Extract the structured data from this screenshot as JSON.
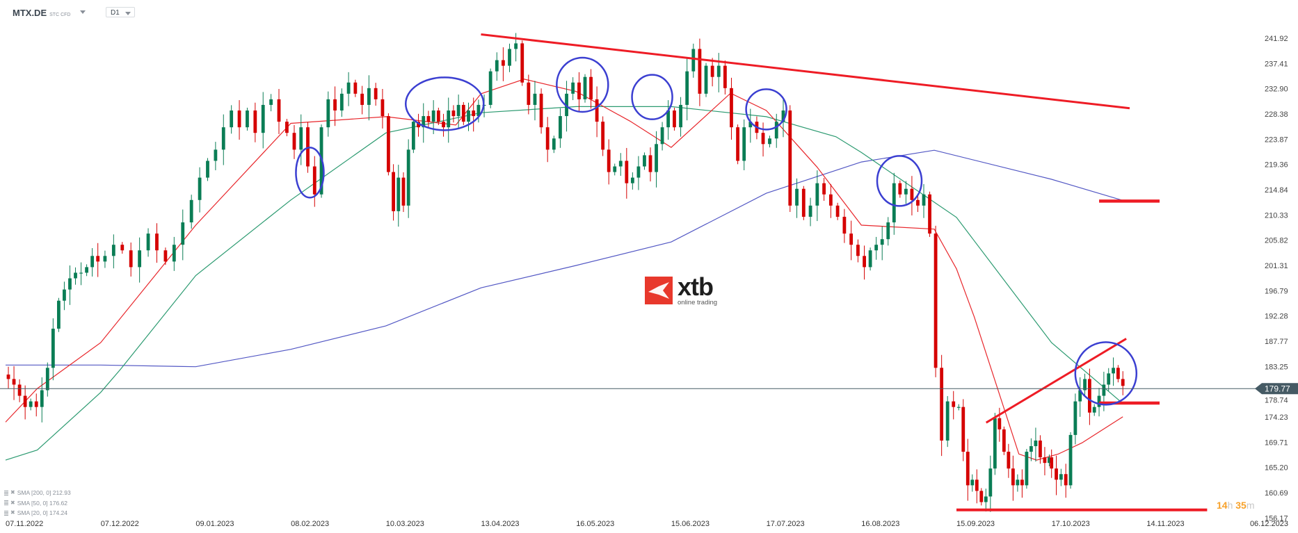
{
  "header": {
    "symbol": "MTX.DE",
    "instrument_class": "STC CFD",
    "timeframe": "D1"
  },
  "legend": [
    {
      "label": "SMA [200, 0] 212.93"
    },
    {
      "label": "SMA [50, 0] 176.62"
    },
    {
      "label": "SMA [20, 0] 174.24"
    }
  ],
  "logo": {
    "word": "xtb",
    "tagline": "online trading"
  },
  "countdown": {
    "hours": "14",
    "h": "h",
    "minutes": "35",
    "m": "m"
  },
  "colors": {
    "up": "#0a7d55",
    "down": "#d50000",
    "sma200": "#5257c4",
    "sma50": "#2b9a70",
    "sma20": "#e8262b",
    "annotation_line": "#ee1c25",
    "annotation_circle": "#3b3fd1",
    "price_tag": "#455a64"
  },
  "chart_data": {
    "type": "candlestick",
    "current_price": "179.77",
    "y_ticks": [
      "241.92",
      "237.41",
      "232.90",
      "228.38",
      "223.87",
      "219.36",
      "214.84",
      "210.33",
      "205.82",
      "201.31",
      "196.79",
      "192.28",
      "187.77",
      "183.25",
      "178.74",
      "174.23",
      "169.71",
      "165.20",
      "160.69",
      "156.17"
    ],
    "ylim": [
      156.17,
      241.92
    ],
    "x_ticks": [
      "07.11.2022",
      "07.12.2022",
      "09.01.2023",
      "08.02.2023",
      "10.03.2023",
      "13.04.2023",
      "16.05.2023",
      "15.06.2023",
      "17.07.2023",
      "16.08.2023",
      "15.09.2023",
      "17.10.2023",
      "14.11.2023",
      "06.12.2023"
    ],
    "close_segments": [
      {
        "from": "07.11.2022",
        "to": "07.12.2022",
        "closes": [
          181,
          180,
          178,
          176,
          177,
          176,
          179,
          183,
          190,
          195,
          197,
          199,
          200,
          200,
          201,
          203,
          202
        ]
      },
      {
        "from": "07.12.2022",
        "to": "09.01.2023",
        "closes": [
          203,
          205,
          204,
          201,
          204,
          207,
          204,
          202,
          205,
          209,
          213
        ]
      },
      {
        "from": "09.01.2023",
        "to": "08.02.2023",
        "closes": [
          217,
          220,
          222,
          226,
          229,
          226,
          229,
          225,
          230,
          231,
          227,
          225
        ]
      },
      {
        "from": "08.02.2023",
        "to": "10.03.2023",
        "closes": [
          222,
          226,
          219,
          214,
          226,
          231,
          229,
          232,
          234,
          232,
          230,
          233,
          231,
          228
        ]
      },
      {
        "from": "10.03.2023",
        "to": "13.04.2023",
        "closes": [
          218,
          211,
          217,
          212,
          222,
          227,
          226,
          228,
          227,
          229,
          227,
          226,
          229,
          228,
          230,
          227,
          229,
          228,
          230
        ]
      },
      {
        "from": "13.04.2023",
        "to": "16.05.2023",
        "closes": [
          230,
          236,
          238,
          237,
          240,
          241,
          234,
          230,
          232,
          226,
          222,
          224,
          228,
          232,
          234
        ]
      },
      {
        "from": "16.05.2023",
        "to": "15.06.2023",
        "closes": [
          231,
          235,
          231,
          227,
          222,
          218,
          219,
          220,
          216,
          217,
          219,
          221,
          218,
          223,
          226,
          229
        ]
      },
      {
        "from": "15.06.2023",
        "to": "17.07.2023",
        "closes": [
          226,
          230,
          236,
          240,
          232,
          237,
          235,
          237,
          233,
          226,
          220,
          226,
          227,
          225,
          223
        ]
      },
      {
        "from": "17.07.2023",
        "to": "16.08.2023",
        "closes": [
          224,
          227,
          229,
          212,
          215,
          210,
          212,
          216,
          214,
          212,
          210,
          207,
          205,
          203
        ]
      },
      {
        "from": "16.08.2023",
        "to": "15.09.2023",
        "closes": [
          201,
          204,
          205,
          206,
          209,
          216,
          214,
          215,
          213,
          212,
          214,
          207,
          183,
          170,
          177,
          176
        ]
      },
      {
        "from": "15.09.2023",
        "to": "17.10.2023",
        "closes": [
          176,
          168,
          162,
          163,
          161,
          159,
          160,
          165,
          174,
          172,
          168,
          165,
          162,
          163,
          162,
          168,
          169,
          170,
          167,
          166,
          167
        ]
      },
      {
        "from": "17.10.2023",
        "to": "07.11.2023",
        "closes": [
          165,
          163,
          164,
          162,
          171,
          177,
          179,
          181,
          175,
          176,
          178,
          180,
          182,
          183,
          181,
          179.77
        ]
      }
    ],
    "series": [
      {
        "name": "SMA [200, 0]",
        "points": [
          [
            "07.11.2022",
            183.5
          ],
          [
            "07.12.2022",
            183.5
          ],
          [
            "09.01.2023",
            183.2
          ],
          [
            "08.02.2023",
            186.3
          ],
          [
            "10.03.2023",
            190.5
          ],
          [
            "13.04.2023",
            197.3
          ],
          [
            "16.05.2023",
            201.3
          ],
          [
            "15.06.2023",
            205.5
          ],
          [
            "17.07.2023",
            214.2
          ],
          [
            "16.08.2023",
            219.8
          ],
          [
            "08.09.2023",
            221.9
          ],
          [
            "17.10.2023",
            216.7
          ],
          [
            "07.11.2023",
            212.93
          ]
        ]
      },
      {
        "name": "SMA [50, 0]",
        "points": [
          [
            "07.11.2022",
            166.5
          ],
          [
            "17.11.2022",
            168.3
          ],
          [
            "07.12.2022",
            178.6
          ],
          [
            "14.12.2022",
            182.8
          ],
          [
            "09.01.2023",
            199.5
          ],
          [
            "08.02.2023",
            213.0
          ],
          [
            "10.03.2023",
            225.0
          ],
          [
            "13.04.2023",
            228.6
          ],
          [
            "16.05.2023",
            229.7
          ],
          [
            "15.06.2023",
            229.7
          ],
          [
            "17.07.2023",
            227.9
          ],
          [
            "08.08.2023",
            224.3
          ],
          [
            "16.08.2023",
            221.5
          ],
          [
            "15.09.2023",
            209.9
          ],
          [
            "17.10.2023",
            187.5
          ],
          [
            "07.11.2023",
            176.62
          ]
        ]
      },
      {
        "name": "SMA [20, 0]",
        "points": [
          [
            "07.11.2022",
            173.3
          ],
          [
            "17.11.2022",
            179.3
          ],
          [
            "07.12.2022",
            187.5
          ],
          [
            "09.01.2023",
            208.5
          ],
          [
            "08.02.2023",
            226.7
          ],
          [
            "10.03.2023",
            227.9
          ],
          [
            "04.04.2023",
            226.4
          ],
          [
            "13.04.2023",
            232.0
          ],
          [
            "28.04.2023",
            234.6
          ],
          [
            "16.05.2023",
            232.4
          ],
          [
            "02.06.2023",
            227.1
          ],
          [
            "15.06.2023",
            222.4
          ],
          [
            "05.07.2023",
            232.1
          ],
          [
            "17.07.2023",
            229.0
          ],
          [
            "02.08.2023",
            218.9
          ],
          [
            "16.08.2023",
            208.5
          ],
          [
            "08.09.2023",
            207.8
          ],
          [
            "15.09.2023",
            200.7
          ],
          [
            "21.09.2023",
            192.1
          ],
          [
            "06.10.2023",
            167.6
          ],
          [
            "12.10.2023",
            166.5
          ],
          [
            "19.10.2023",
            167.6
          ],
          [
            "26.10.2023",
            169.6
          ],
          [
            "07.11.2023",
            174.24
          ]
        ]
      }
    ],
    "grid": false
  }
}
